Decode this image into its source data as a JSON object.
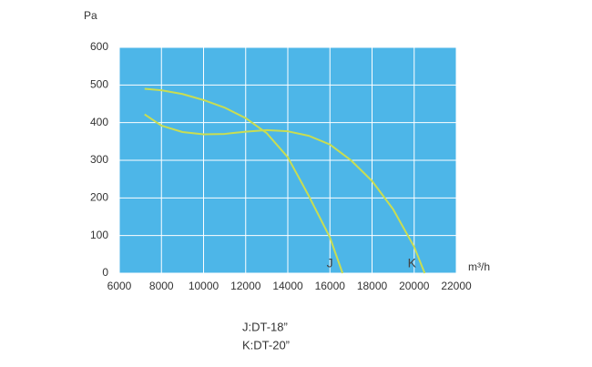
{
  "chart_data": {
    "type": "line",
    "y_unit": "Pa",
    "x_unit": "m³/h",
    "xlim": [
      6000,
      22000
    ],
    "xticks": [
      6000,
      8000,
      10000,
      12000,
      14000,
      16000,
      18000,
      20000,
      22000
    ],
    "ylim": [
      0,
      600
    ],
    "yticks": [
      0,
      100,
      200,
      300,
      400,
      500,
      600
    ],
    "grid": true,
    "background": "#4db6e8",
    "series": [
      {
        "name": "J",
        "label": "J:DT-18”",
        "color": "#c9dd52",
        "x": [
          7200,
          8000,
          9000,
          10000,
          11000,
          12000,
          13000,
          14000,
          15000,
          16000,
          16600
        ],
        "values": [
          490,
          486,
          476,
          460,
          440,
          412,
          372,
          308,
          205,
          95,
          0
        ]
      },
      {
        "name": "K",
        "label": "K:DT-20”",
        "color": "#c9dd52",
        "x": [
          7200,
          8000,
          9000,
          10000,
          11000,
          12000,
          13000,
          14000,
          15000,
          16000,
          17000,
          18000,
          19000,
          20000,
          20500
        ],
        "values": [
          422,
          392,
          375,
          369,
          370,
          376,
          380,
          377,
          365,
          342,
          300,
          245,
          170,
          70,
          0
        ]
      }
    ]
  }
}
